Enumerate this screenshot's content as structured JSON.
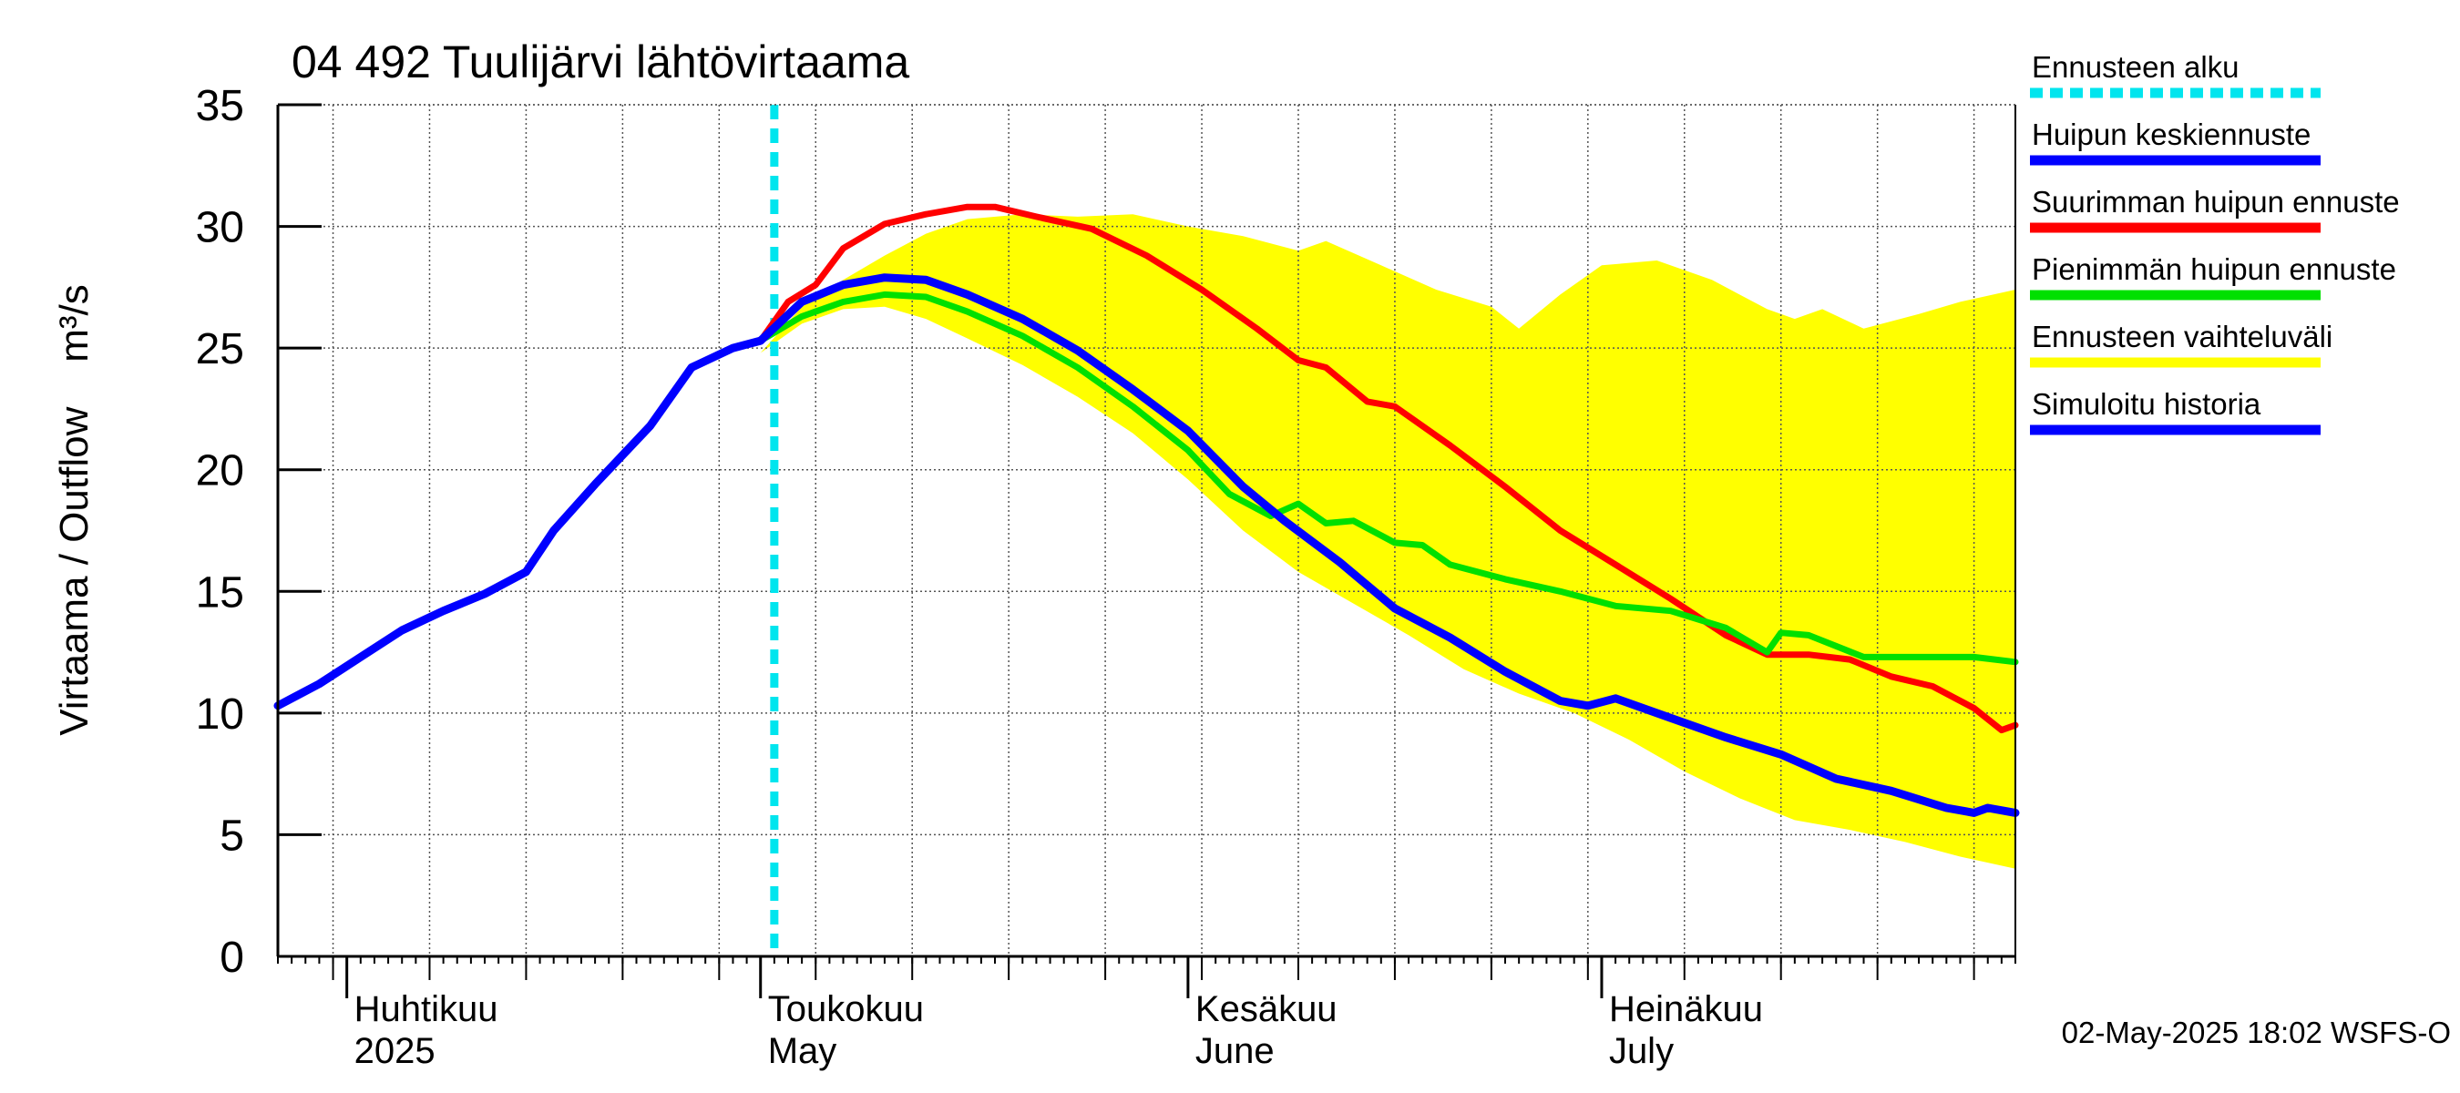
{
  "chart_data": {
    "type": "line",
    "title": "04 492 Tuulijärvi lähtövirtaama",
    "ylabel": "Virtaama / Outflow    m³/s",
    "ylim": [
      0,
      35
    ],
    "xlim": [
      "2025-03-27",
      "2025-07-31"
    ],
    "grid": true,
    "legend_position": "right",
    "y_ticks": [
      0,
      5,
      10,
      15,
      20,
      25,
      30,
      35
    ],
    "x_month_labels": [
      {
        "date": "2025-04-01",
        "line1": "Huhtikuu",
        "line2": "2025"
      },
      {
        "date": "2025-05-01",
        "line1": "Toukokuu",
        "line2": "May"
      },
      {
        "date": "2025-06-01",
        "line1": "Kesäkuu",
        "line2": "June"
      },
      {
        "date": "2025-07-01",
        "line1": "Heinäkuu",
        "line2": "July"
      }
    ],
    "forecast_start": "2025-05-02",
    "footer": "02-May-2025 18:02 WSFS-O",
    "legend": [
      {
        "label": "Ennusteen alku",
        "color": "#00e5ee",
        "dashed": true
      },
      {
        "label": "Huipun keskiennuste",
        "color": "#0000ff"
      },
      {
        "label": "Suurimman huipun ennuste",
        "color": "#ff0000"
      },
      {
        "label": "Pienimmän huipun ennuste",
        "color": "#00e000"
      },
      {
        "label": "Ennusteen vaihteluväli",
        "color": "#ffff00"
      },
      {
        "label": "Simuloitu historia",
        "color": "#0000ff"
      }
    ],
    "band": {
      "name": "Ennusteen vaihteluväli",
      "color": "#ffff00",
      "upper": [
        [
          "2025-05-01",
          24.8
        ],
        [
          "2025-05-04",
          26.7
        ],
        [
          "2025-05-07",
          27.8
        ],
        [
          "2025-05-10",
          28.8
        ],
        [
          "2025-05-13",
          29.7
        ],
        [
          "2025-05-16",
          30.3
        ],
        [
          "2025-05-20",
          30.5
        ],
        [
          "2025-05-24",
          30.4
        ],
        [
          "2025-05-28",
          30.5
        ],
        [
          "2025-06-01",
          30.0
        ],
        [
          "2025-06-05",
          29.6
        ],
        [
          "2025-06-09",
          29.0
        ],
        [
          "2025-06-11",
          29.4
        ],
        [
          "2025-06-15",
          28.4
        ],
        [
          "2025-06-19",
          27.4
        ],
        [
          "2025-06-23",
          26.7
        ],
        [
          "2025-06-25",
          25.8
        ],
        [
          "2025-06-28",
          27.2
        ],
        [
          "2025-07-01",
          28.4
        ],
        [
          "2025-07-05",
          28.6
        ],
        [
          "2025-07-09",
          27.8
        ],
        [
          "2025-07-13",
          26.6
        ],
        [
          "2025-07-15",
          26.2
        ],
        [
          "2025-07-17",
          26.6
        ],
        [
          "2025-07-20",
          25.8
        ],
        [
          "2025-07-24",
          26.4
        ],
        [
          "2025-07-27",
          26.9
        ],
        [
          "2025-07-31",
          27.4
        ]
      ],
      "lower": [
        [
          "2025-05-01",
          24.8
        ],
        [
          "2025-05-04",
          26.0
        ],
        [
          "2025-05-07",
          26.6
        ],
        [
          "2025-05-10",
          26.7
        ],
        [
          "2025-05-13",
          26.2
        ],
        [
          "2025-05-16",
          25.4
        ],
        [
          "2025-05-20",
          24.3
        ],
        [
          "2025-05-24",
          23.0
        ],
        [
          "2025-05-28",
          21.5
        ],
        [
          "2025-06-01",
          19.6
        ],
        [
          "2025-06-05",
          17.5
        ],
        [
          "2025-06-09",
          15.8
        ],
        [
          "2025-06-13",
          14.5
        ],
        [
          "2025-06-17",
          13.2
        ],
        [
          "2025-06-21",
          11.8
        ],
        [
          "2025-06-25",
          10.8
        ],
        [
          "2025-06-29",
          10.0
        ],
        [
          "2025-07-03",
          8.9
        ],
        [
          "2025-07-07",
          7.6
        ],
        [
          "2025-07-11",
          6.5
        ],
        [
          "2025-07-15",
          5.6
        ],
        [
          "2025-07-19",
          5.2
        ],
        [
          "2025-07-23",
          4.7
        ],
        [
          "2025-07-27",
          4.1
        ],
        [
          "2025-07-31",
          3.6
        ]
      ]
    },
    "series": [
      {
        "name": "Simuloitu historia",
        "color": "#0000ff",
        "width": 9,
        "points": [
          [
            "2025-03-27",
            10.3
          ],
          [
            "2025-03-30",
            11.2
          ],
          [
            "2025-04-02",
            12.3
          ],
          [
            "2025-04-05",
            13.4
          ],
          [
            "2025-04-08",
            14.2
          ],
          [
            "2025-04-11",
            14.9
          ],
          [
            "2025-04-14",
            15.8
          ],
          [
            "2025-04-16",
            17.5
          ],
          [
            "2025-04-19",
            19.4
          ],
          [
            "2025-04-23",
            21.8
          ],
          [
            "2025-04-26",
            24.2
          ],
          [
            "2025-04-29",
            25.0
          ],
          [
            "2025-05-01",
            25.3
          ]
        ]
      },
      {
        "name": "Suurimman huipun ennuste",
        "color": "#ff0000",
        "width": 7,
        "points": [
          [
            "2025-05-01",
            25.3
          ],
          [
            "2025-05-03",
            26.9
          ],
          [
            "2025-05-05",
            27.6
          ],
          [
            "2025-05-07",
            29.1
          ],
          [
            "2025-05-10",
            30.1
          ],
          [
            "2025-05-13",
            30.5
          ],
          [
            "2025-05-16",
            30.8
          ],
          [
            "2025-05-18",
            30.8
          ],
          [
            "2025-05-21",
            30.4
          ],
          [
            "2025-05-25",
            29.9
          ],
          [
            "2025-05-29",
            28.8
          ],
          [
            "2025-06-02",
            27.4
          ],
          [
            "2025-06-06",
            25.8
          ],
          [
            "2025-06-09",
            24.5
          ],
          [
            "2025-06-11",
            24.2
          ],
          [
            "2025-06-14",
            22.8
          ],
          [
            "2025-06-16",
            22.6
          ],
          [
            "2025-06-20",
            21.0
          ],
          [
            "2025-06-24",
            19.3
          ],
          [
            "2025-06-28",
            17.5
          ],
          [
            "2025-07-02",
            16.1
          ],
          [
            "2025-07-06",
            14.7
          ],
          [
            "2025-07-10",
            13.2
          ],
          [
            "2025-07-13",
            12.4
          ],
          [
            "2025-07-16",
            12.4
          ],
          [
            "2025-07-19",
            12.2
          ],
          [
            "2025-07-22",
            11.5
          ],
          [
            "2025-07-25",
            11.1
          ],
          [
            "2025-07-28",
            10.2
          ],
          [
            "2025-07-30",
            9.3
          ],
          [
            "2025-07-31",
            9.5
          ]
        ]
      },
      {
        "name": "Pienimmän huipun ennuste",
        "color": "#00e000",
        "width": 7,
        "points": [
          [
            "2025-05-01",
            25.3
          ],
          [
            "2025-05-04",
            26.3
          ],
          [
            "2025-05-07",
            26.9
          ],
          [
            "2025-05-10",
            27.2
          ],
          [
            "2025-05-13",
            27.1
          ],
          [
            "2025-05-16",
            26.5
          ],
          [
            "2025-05-20",
            25.5
          ],
          [
            "2025-05-24",
            24.2
          ],
          [
            "2025-05-28",
            22.6
          ],
          [
            "2025-06-01",
            20.8
          ],
          [
            "2025-06-04",
            19.0
          ],
          [
            "2025-06-07",
            18.1
          ],
          [
            "2025-06-09",
            18.6
          ],
          [
            "2025-06-11",
            17.8
          ],
          [
            "2025-06-13",
            17.9
          ],
          [
            "2025-06-16",
            17.0
          ],
          [
            "2025-06-18",
            16.9
          ],
          [
            "2025-06-20",
            16.1
          ],
          [
            "2025-06-24",
            15.5
          ],
          [
            "2025-06-28",
            15.0
          ],
          [
            "2025-07-02",
            14.4
          ],
          [
            "2025-07-06",
            14.2
          ],
          [
            "2025-07-10",
            13.5
          ],
          [
            "2025-07-13",
            12.5
          ],
          [
            "2025-07-14",
            13.3
          ],
          [
            "2025-07-16",
            13.2
          ],
          [
            "2025-07-20",
            12.3
          ],
          [
            "2025-07-24",
            12.3
          ],
          [
            "2025-07-28",
            12.3
          ],
          [
            "2025-07-31",
            12.1
          ]
        ]
      },
      {
        "name": "Huipun keskiennuste",
        "color": "#0000ff",
        "width": 9,
        "points": [
          [
            "2025-05-01",
            25.3
          ],
          [
            "2025-05-04",
            26.9
          ],
          [
            "2025-05-07",
            27.6
          ],
          [
            "2025-05-10",
            27.9
          ],
          [
            "2025-05-13",
            27.8
          ],
          [
            "2025-05-16",
            27.2
          ],
          [
            "2025-05-20",
            26.2
          ],
          [
            "2025-05-24",
            24.9
          ],
          [
            "2025-05-28",
            23.3
          ],
          [
            "2025-06-01",
            21.6
          ],
          [
            "2025-06-05",
            19.3
          ],
          [
            "2025-06-08",
            17.9
          ],
          [
            "2025-06-12",
            16.2
          ],
          [
            "2025-06-16",
            14.3
          ],
          [
            "2025-06-20",
            13.1
          ],
          [
            "2025-06-24",
            11.7
          ],
          [
            "2025-06-28",
            10.5
          ],
          [
            "2025-06-30",
            10.3
          ],
          [
            "2025-07-02",
            10.6
          ],
          [
            "2025-07-06",
            9.8
          ],
          [
            "2025-07-10",
            9.0
          ],
          [
            "2025-07-14",
            8.3
          ],
          [
            "2025-07-18",
            7.3
          ],
          [
            "2025-07-22",
            6.8
          ],
          [
            "2025-07-26",
            6.1
          ],
          [
            "2025-07-28",
            5.9
          ],
          [
            "2025-07-29",
            6.1
          ],
          [
            "2025-07-31",
            5.9
          ]
        ]
      }
    ]
  }
}
